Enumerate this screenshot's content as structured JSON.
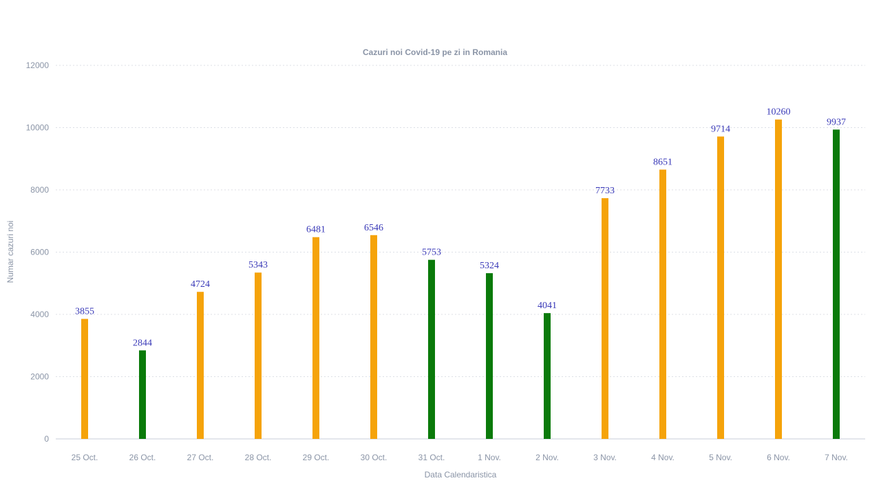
{
  "chart_data": {
    "type": "bar",
    "title": "Cazuri noi Covid-19 pe zi in Romania",
    "xlabel": "Data Calendaristica",
    "ylabel": "Numar cazuri noi",
    "ylim": [
      0,
      12000
    ],
    "yticks": [
      0,
      2000,
      4000,
      6000,
      8000,
      10000,
      12000
    ],
    "grid": true,
    "categories": [
      "25 Oct.",
      "26 Oct.",
      "27 Oct.",
      "28 Oct.",
      "29 Oct.",
      "30 Oct.",
      "31 Oct.",
      "1 Nov.",
      "2 Nov.",
      "3 Nov.",
      "4 Nov.",
      "5 Nov.",
      "6 Nov.",
      "7 Nov."
    ],
    "values": [
      3855,
      2844,
      4724,
      5343,
      6481,
      6546,
      5753,
      5324,
      4041,
      7733,
      8651,
      9714,
      10260,
      9937
    ],
    "bar_colors": [
      "#f5a30a",
      "#0a7a0a",
      "#f5a30a",
      "#f5a30a",
      "#f5a30a",
      "#f5a30a",
      "#0a7a0a",
      "#0a7a0a",
      "#0a7a0a",
      "#f5a30a",
      "#f5a30a",
      "#f5a30a",
      "#f5a30a",
      "#0a7a0a"
    ]
  }
}
